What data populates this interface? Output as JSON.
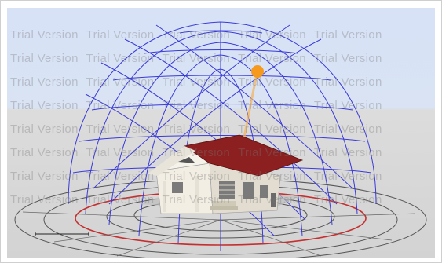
{
  "watermark": {
    "text": "Trial Version"
  },
  "colors": {
    "sky": "#d7e2f6",
    "ground": "#d6d6d6",
    "dome_lines": "#3a3ad8",
    "sun": "#f59a1c",
    "roof": "#8c1f1f",
    "walls": "#f2eee3",
    "orbit_red": "#c43030",
    "orbit_black": "#444444"
  },
  "icons": {
    "sun": "sun-icon",
    "house": "house-icon"
  }
}
